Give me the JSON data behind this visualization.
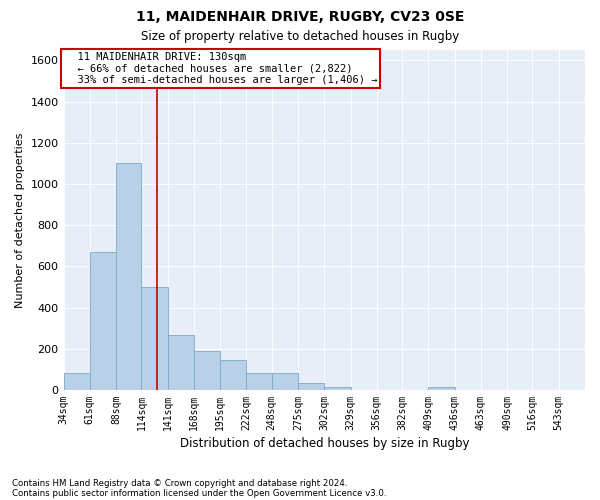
{
  "title1": "11, MAIDENHAIR DRIVE, RUGBY, CV23 0SE",
  "title2": "Size of property relative to detached houses in Rugby",
  "xlabel": "Distribution of detached houses by size in Rugby",
  "ylabel": "Number of detached properties",
  "footnote1": "Contains HM Land Registry data © Crown copyright and database right 2024.",
  "footnote2": "Contains public sector information licensed under the Open Government Licence v3.0.",
  "annotation_line1": "11 MAIDENHAIR DRIVE: 130sqm",
  "annotation_line2": "← 66% of detached houses are smaller (2,822)",
  "annotation_line3": "33% of semi-detached houses are larger (1,406) →",
  "property_size_sqm": 130,
  "bar_color": "#b8d0e8",
  "bar_edge_color": "#7aaac8",
  "vline_color": "#cc0000",
  "background_color": "#e8eef8",
  "bin_edges": [
    34,
    61,
    88,
    114,
    141,
    168,
    195,
    222,
    248,
    275,
    302,
    329,
    356,
    382,
    409,
    436,
    463,
    490,
    516,
    543,
    570
  ],
  "bar_heights": [
    80,
    670,
    1100,
    500,
    265,
    190,
    145,
    80,
    80,
    35,
    15,
    0,
    0,
    0,
    15,
    0,
    0,
    0,
    0,
    0
  ],
  "ylim": [
    0,
    1650
  ],
  "yticks": [
    0,
    200,
    400,
    600,
    800,
    1000,
    1200,
    1400,
    1600
  ]
}
